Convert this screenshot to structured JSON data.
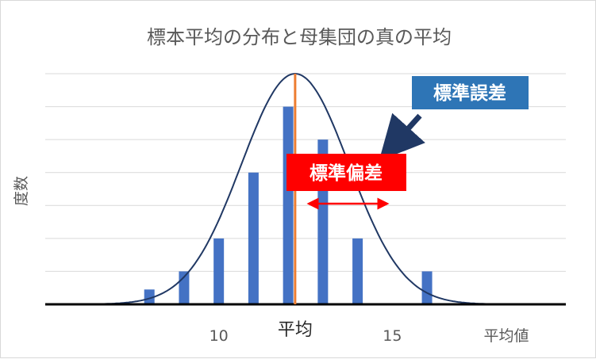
{
  "chart_data": {
    "type": "bar",
    "title": "標本平均の分布と母集団の真の平均",
    "ylabel": "度数",
    "xlabel": "平均値",
    "x_ticks": [
      10,
      15
    ],
    "xlim": [
      5,
      20
    ],
    "ylim": [
      0,
      7
    ],
    "grid": true,
    "bars": [
      {
        "x": 8,
        "value": 0.45
      },
      {
        "x": 9,
        "value": 1.0
      },
      {
        "x": 10,
        "value": 2.0
      },
      {
        "x": 11,
        "value": 4.0
      },
      {
        "x": 12,
        "value": 6.0
      },
      {
        "x": 13,
        "value": 5.0
      },
      {
        "x": 14,
        "value": 2.0
      },
      {
        "x": 16,
        "value": 1.0
      }
    ],
    "curve": {
      "mean": 12.2,
      "sd": 1.55,
      "peak": 7.0
    },
    "mean_line": {
      "x": 12.2,
      "label": "平均",
      "color": "#ed7d31"
    },
    "callouts": {
      "standard_error": {
        "label": "標準誤差",
        "color": "#2e75b6",
        "arrow_color": "#203864"
      },
      "standard_deviation": {
        "label": "標準偏差",
        "color": "#ff0000"
      }
    },
    "colors": {
      "bar": "#4472c4",
      "curve": "#203864",
      "grid": "#d9d9d9",
      "axis": "#000000"
    }
  }
}
